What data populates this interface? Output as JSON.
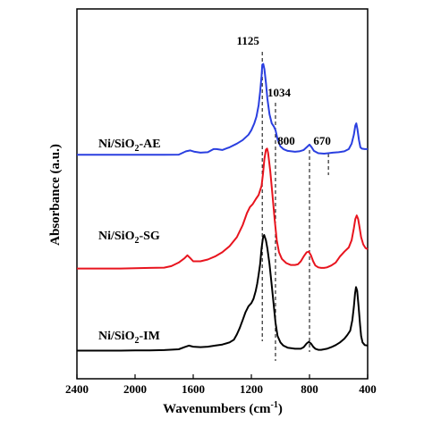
{
  "chart_data": {
    "type": "line",
    "xlabel_main": "Wavenumbers (cm",
    "xlabel_sup": "-1",
    "xlabel_close": ")",
    "ylabel": "Absorbance (a.u.)",
    "xlim": [
      2400,
      400
    ],
    "x_reversed": true,
    "y_ticks_shown": false,
    "xticks": [
      "2400",
      "2000",
      "1600",
      "1200",
      "800",
      "400"
    ],
    "series": [
      {
        "name": "Ni/SiO2-AE",
        "label_parts": {
          "pre": "Ni/SiO",
          "sub": "2",
          "post": "-AE"
        },
        "color": "#2a3fe0",
        "points": [
          [
            2400,
            0.55
          ],
          [
            2300,
            0.55
          ],
          [
            2200,
            0.55
          ],
          [
            2100,
            0.55
          ],
          [
            2000,
            0.55
          ],
          [
            1900,
            0.56
          ],
          [
            1800,
            0.56
          ],
          [
            1700,
            0.58
          ],
          [
            1650,
            1.3
          ],
          [
            1620,
            1.5
          ],
          [
            1590,
            1.2
          ],
          [
            1550,
            1.0
          ],
          [
            1500,
            1.1
          ],
          [
            1460,
            1.8
          ],
          [
            1440,
            1.8
          ],
          [
            1400,
            1.6
          ],
          [
            1350,
            2.2
          ],
          [
            1300,
            3.0
          ],
          [
            1260,
            3.8
          ],
          [
            1220,
            5.0
          ],
          [
            1200,
            6.0
          ],
          [
            1180,
            7.5
          ],
          [
            1165,
            9.0
          ],
          [
            1150,
            11.5
          ],
          [
            1140,
            14.5
          ],
          [
            1130,
            18.0
          ],
          [
            1125,
            20.5
          ],
          [
            1118,
            20.7
          ],
          [
            1110,
            19.5
          ],
          [
            1100,
            16.5
          ],
          [
            1090,
            13.0
          ],
          [
            1075,
            9.5
          ],
          [
            1060,
            7.5
          ],
          [
            1045,
            6.8
          ],
          [
            1034,
            6.0
          ],
          [
            1020,
            4.0
          ],
          [
            1000,
            2.4
          ],
          [
            980,
            1.8
          ],
          [
            950,
            1.4
          ],
          [
            900,
            1.2
          ],
          [
            870,
            1.3
          ],
          [
            840,
            1.6
          ],
          [
            820,
            2.2
          ],
          [
            800,
            2.8
          ],
          [
            785,
            2.2
          ],
          [
            770,
            1.4
          ],
          [
            740,
            0.9
          ],
          [
            700,
            0.8
          ],
          [
            670,
            0.9
          ],
          [
            640,
            1.0
          ],
          [
            600,
            1.1
          ],
          [
            560,
            1.3
          ],
          [
            530,
            1.8
          ],
          [
            510,
            3.0
          ],
          [
            495,
            5.0
          ],
          [
            485,
            7.0
          ],
          [
            478,
            7.5
          ],
          [
            470,
            6.2
          ],
          [
            460,
            3.8
          ],
          [
            450,
            2.2
          ],
          [
            440,
            1.9
          ],
          [
            420,
            1.8
          ],
          [
            400,
            1.8
          ]
        ]
      },
      {
        "name": "Ni/SiO2-SG",
        "label_parts": {
          "pre": "Ni/SiO",
          "sub": "2",
          "post": "-SG"
        },
        "color": "#e8141e",
        "points": [
          [
            2400,
            0.8
          ],
          [
            2300,
            0.8
          ],
          [
            2200,
            0.8
          ],
          [
            2100,
            0.8
          ],
          [
            2000,
            0.85
          ],
          [
            1900,
            0.9
          ],
          [
            1800,
            0.95
          ],
          [
            1750,
            1.2
          ],
          [
            1700,
            1.8
          ],
          [
            1660,
            2.5
          ],
          [
            1640,
            3.0
          ],
          [
            1620,
            2.5
          ],
          [
            1600,
            2.0
          ],
          [
            1550,
            2.0
          ],
          [
            1500,
            2.3
          ],
          [
            1450,
            2.8
          ],
          [
            1400,
            3.5
          ],
          [
            1350,
            4.5
          ],
          [
            1300,
            6.0
          ],
          [
            1260,
            8.0
          ],
          [
            1230,
            10.0
          ],
          [
            1210,
            11.0
          ],
          [
            1190,
            11.5
          ],
          [
            1170,
            12.3
          ],
          [
            1150,
            13.0
          ],
          [
            1130,
            14.5
          ],
          [
            1120,
            16.5
          ],
          [
            1110,
            19.0
          ],
          [
            1100,
            20.5
          ],
          [
            1092,
            20.7
          ],
          [
            1085,
            20.0
          ],
          [
            1070,
            17.0
          ],
          [
            1055,
            13.0
          ],
          [
            1040,
            9.0
          ],
          [
            1025,
            5.5
          ],
          [
            1010,
            3.5
          ],
          [
            990,
            2.4
          ],
          [
            960,
            1.7
          ],
          [
            930,
            1.4
          ],
          [
            900,
            1.4
          ],
          [
            880,
            1.5
          ],
          [
            860,
            2.0
          ],
          [
            840,
            2.8
          ],
          [
            820,
            3.5
          ],
          [
            805,
            3.6
          ],
          [
            790,
            3.0
          ],
          [
            775,
            2.0
          ],
          [
            760,
            1.3
          ],
          [
            740,
            1.0
          ],
          [
            720,
            0.9
          ],
          [
            700,
            0.9
          ],
          [
            680,
            1.0
          ],
          [
            650,
            1.3
          ],
          [
            620,
            1.8
          ],
          [
            590,
            2.8
          ],
          [
            560,
            3.6
          ],
          [
            530,
            4.3
          ],
          [
            510,
            5.5
          ],
          [
            495,
            7.5
          ],
          [
            485,
            9.0
          ],
          [
            475,
            9.6
          ],
          [
            465,
            9.0
          ],
          [
            455,
            7.5
          ],
          [
            445,
            6.0
          ],
          [
            430,
            4.8
          ],
          [
            415,
            4.2
          ],
          [
            400,
            4.0
          ]
        ]
      },
      {
        "name": "Ni/SiO2-IM",
        "label_parts": {
          "pre": "Ni/SiO",
          "sub": "2",
          "post": "-IM"
        },
        "color": "#000000",
        "points": [
          [
            2400,
            0.25
          ],
          [
            2300,
            0.25
          ],
          [
            2200,
            0.25
          ],
          [
            2100,
            0.25
          ],
          [
            2000,
            0.3
          ],
          [
            1900,
            0.3
          ],
          [
            1800,
            0.35
          ],
          [
            1700,
            0.5
          ],
          [
            1660,
            0.9
          ],
          [
            1630,
            1.2
          ],
          [
            1600,
            1.0
          ],
          [
            1550,
            0.9
          ],
          [
            1500,
            1.0
          ],
          [
            1450,
            1.2
          ],
          [
            1400,
            1.4
          ],
          [
            1350,
            1.8
          ],
          [
            1320,
            2.3
          ],
          [
            1300,
            3.3
          ],
          [
            1280,
            4.5
          ],
          [
            1260,
            6.0
          ],
          [
            1240,
            7.5
          ],
          [
            1220,
            8.6
          ],
          [
            1200,
            9.2
          ],
          [
            1185,
            10.0
          ],
          [
            1170,
            11.5
          ],
          [
            1160,
            12.8
          ],
          [
            1150,
            14.5
          ],
          [
            1140,
            16.5
          ],
          [
            1130,
            19.5
          ],
          [
            1120,
            21.5
          ],
          [
            1112,
            22.0
          ],
          [
            1100,
            21.0
          ],
          [
            1090,
            19.5
          ],
          [
            1075,
            16.5
          ],
          [
            1060,
            12.5
          ],
          [
            1045,
            8.5
          ],
          [
            1034,
            5.5
          ],
          [
            1020,
            3.0
          ],
          [
            1000,
            1.8
          ],
          [
            980,
            1.2
          ],
          [
            950,
            0.8
          ],
          [
            900,
            0.6
          ],
          [
            860,
            0.6
          ],
          [
            840,
            0.9
          ],
          [
            820,
            1.6
          ],
          [
            805,
            1.9
          ],
          [
            790,
            1.6
          ],
          [
            775,
            1.0
          ],
          [
            760,
            0.6
          ],
          [
            740,
            0.4
          ],
          [
            720,
            0.4
          ],
          [
            700,
            0.5
          ],
          [
            680,
            0.6
          ],
          [
            650,
            0.9
          ],
          [
            620,
            1.3
          ],
          [
            590,
            1.8
          ],
          [
            560,
            2.5
          ],
          [
            540,
            3.2
          ],
          [
            520,
            4.0
          ],
          [
            505,
            6.0
          ],
          [
            495,
            8.5
          ],
          [
            487,
            11.0
          ],
          [
            480,
            12.2
          ],
          [
            472,
            11.5
          ],
          [
            462,
            8.5
          ],
          [
            452,
            5.0
          ],
          [
            445,
            3.0
          ],
          [
            435,
            1.8
          ],
          [
            420,
            1.3
          ],
          [
            400,
            1.2
          ]
        ]
      }
    ],
    "annotations": [
      {
        "text": "1125",
        "x": 1125
      },
      {
        "text": "1034",
        "x": 1034
      },
      {
        "text": "800",
        "x": 800
      },
      {
        "text": "670",
        "x": 670
      }
    ]
  }
}
